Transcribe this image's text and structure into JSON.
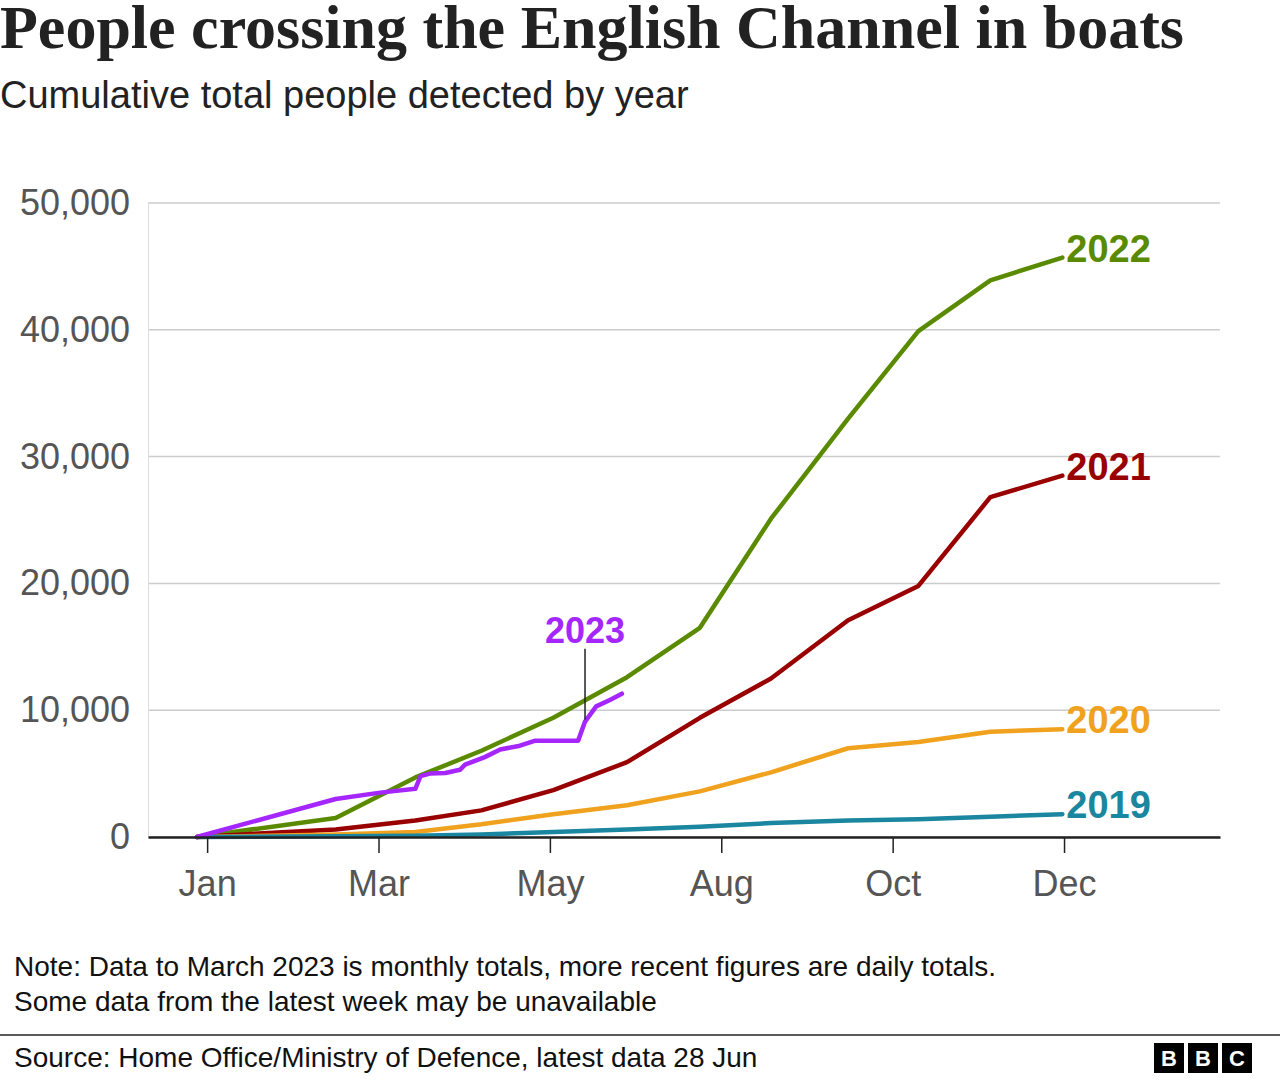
{
  "chart_data": {
    "type": "line",
    "title": "People crossing the English Channel in boats",
    "subtitle": "Cumulative total people detected by year",
    "xlim": [
      -0.69,
      11.82
    ],
    "xticks": [
      {
        "value": 0,
        "label": "Jan"
      },
      {
        "value": 2,
        "label": "Mar"
      },
      {
        "value": 4,
        "label": "May"
      },
      {
        "value": 6,
        "label": "Aug"
      },
      {
        "value": 8,
        "label": "Oct"
      },
      {
        "value": 10,
        "label": "Dec"
      }
    ],
    "ylim": [
      0,
      50000
    ],
    "yticks": [
      0,
      {
        "value": 10000,
        "label": "10,000"
      },
      {
        "value": 20000,
        "label": "20,000"
      },
      {
        "value": 30000,
        "label": "30,000"
      },
      {
        "value": 40000,
        "label": "40,000"
      },
      {
        "value": 50000,
        "label": "50,000"
      }
    ],
    "grid": true,
    "series": [
      {
        "name": "2022",
        "color": "#5a8a00",
        "x": [
          -0.12,
          1.5,
          2.43,
          3.2,
          4.04,
          4.9,
          5.75,
          6.58,
          7.48,
          8.3,
          9.14,
          9.98
        ],
        "values": [
          0,
          1500,
          4700,
          6800,
          9400,
          12600,
          16500,
          25100,
          33000,
          39900,
          43900,
          45700
        ]
      },
      {
        "name": "2021",
        "color": "#990000",
        "x": [
          -0.12,
          1.5,
          2.43,
          3.2,
          4.04,
          4.9,
          5.75,
          6.58,
          7.48,
          8.3,
          9.14,
          9.98
        ],
        "values": [
          0,
          600,
          1300,
          2100,
          3700,
          5900,
          9400,
          12500,
          17100,
          19800,
          26800,
          28500
        ]
      },
      {
        "name": "2020",
        "color": "#f0a21e",
        "x": [
          -0.12,
          1.5,
          2.43,
          3.2,
          4.04,
          4.9,
          5.75,
          6.58,
          7.48,
          8.3,
          9.14,
          9.98
        ],
        "values": [
          0,
          200,
          400,
          1000,
          1800,
          2500,
          3600,
          5100,
          7000,
          7500,
          8300,
          8500
        ]
      },
      {
        "name": "2019",
        "color": "#1a86a0",
        "x": [
          -0.12,
          1.5,
          2.43,
          3.2,
          4.04,
          4.9,
          5.75,
          6.58,
          7.48,
          8.3,
          9.14,
          9.98
        ],
        "values": [
          0,
          50,
          100,
          200,
          400,
          600,
          800,
          1100,
          1300,
          1400,
          1600,
          1800
        ]
      },
      {
        "name": "2023",
        "color": "#a526ff",
        "x": [
          -0.12,
          1.5,
          2.02,
          2.43,
          2.49,
          2.6,
          2.78,
          2.95,
          3.01,
          3.24,
          3.42,
          3.65,
          3.83,
          4.33,
          4.41,
          4.54,
          4.7,
          4.84
        ],
        "values": [
          0,
          3000,
          3500,
          3800,
          4800,
          5000,
          5050,
          5300,
          5700,
          6300,
          6900,
          7200,
          7600,
          7600,
          9100,
          10300,
          10800,
          11300
        ]
      }
    ],
    "note": [
      "Note: Data to March 2023 is monthly totals, more recent figures are daily totals.",
      "Some data from the latest week may be unavailable"
    ],
    "source": "Source: Home Office/Ministry of Defence, latest data 28 Jun",
    "logo": "BBC"
  }
}
